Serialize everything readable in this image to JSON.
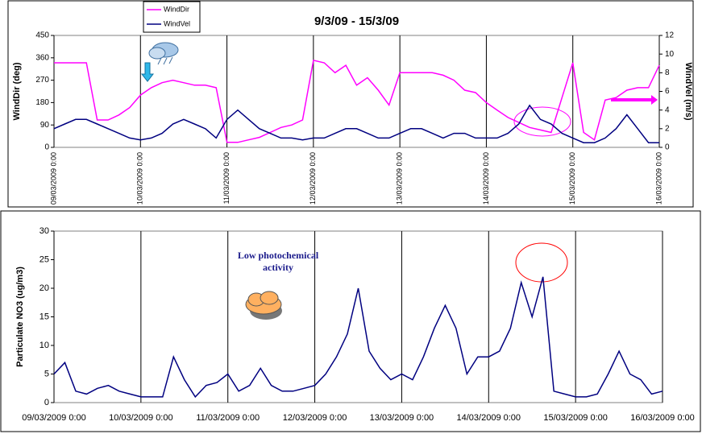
{
  "chart_data": [
    {
      "type": "line",
      "title": "9/3/09 - 15/3/09",
      "ylabel": "WindDir (deg)",
      "y2label": "WindVel (m/s)",
      "x": [
        "09/03/2009 0:00",
        "09/03/2009 3:00",
        "09/03/2009 6:00",
        "09/03/2009 9:00",
        "09/03/2009 12:00",
        "09/03/2009 15:00",
        "09/03/2009 18:00",
        "09/03/2009 21:00",
        "10/03/2009 0:00",
        "10/03/2009 3:00",
        "10/03/2009 6:00",
        "10/03/2009 9:00",
        "10/03/2009 12:00",
        "10/03/2009 15:00",
        "10/03/2009 18:00",
        "10/03/2009 21:00",
        "11/03/2009 0:00",
        "11/03/2009 3:00",
        "11/03/2009 6:00",
        "11/03/2009 9:00",
        "11/03/2009 12:00",
        "11/03/2009 15:00",
        "11/03/2009 18:00",
        "11/03/2009 21:00",
        "12/03/2009 0:00",
        "12/03/2009 3:00",
        "12/03/2009 6:00",
        "12/03/2009 9:00",
        "12/03/2009 12:00",
        "12/03/2009 15:00",
        "12/03/2009 18:00",
        "12/03/2009 21:00",
        "13/03/2009 0:00",
        "13/03/2009 3:00",
        "13/03/2009 6:00",
        "13/03/2009 9:00",
        "13/03/2009 12:00",
        "13/03/2009 15:00",
        "13/03/2009 18:00",
        "13/03/2009 21:00",
        "14/03/2009 0:00",
        "14/03/2009 3:00",
        "14/03/2009 6:00",
        "14/03/2009 9:00",
        "14/03/2009 12:00",
        "14/03/2009 15:00",
        "14/03/2009 18:00",
        "14/03/2009 21:00",
        "15/03/2009 0:00",
        "15/03/2009 3:00",
        "15/03/2009 6:00",
        "15/03/2009 9:00",
        "15/03/2009 12:00",
        "15/03/2009 15:00",
        "15/03/2009 18:00",
        "15/03/2009 21:00",
        "16/03/2009 0:00"
      ],
      "series": [
        {
          "name": "WindDir",
          "color": "#ff00ff",
          "values": [
            340,
            340,
            340,
            340,
            110,
            110,
            130,
            160,
            210,
            240,
            260,
            270,
            260,
            250,
            250,
            240,
            20,
            20,
            30,
            40,
            60,
            80,
            90,
            110,
            350,
            340,
            300,
            330,
            250,
            280,
            230,
            170,
            300,
            300,
            300,
            300,
            290,
            270,
            230,
            220,
            180,
            150,
            120,
            100,
            80,
            70,
            60,
            200,
            340,
            60,
            30,
            190,
            200,
            230,
            240,
            240,
            330
          ]
        },
        {
          "name": "WindVel",
          "color": "#000080",
          "axis": "y2",
          "values": [
            2,
            2.5,
            3,
            3,
            2.5,
            2,
            1.5,
            1,
            0.8,
            1,
            1.5,
            2.5,
            3,
            2.5,
            2,
            1,
            3,
            4,
            3,
            2,
            1.5,
            1,
            1,
            0.8,
            1,
            1,
            1.5,
            2,
            2,
            1.5,
            1,
            1,
            1.5,
            2,
            2,
            1.5,
            1,
            1.5,
            1.5,
            1,
            1,
            1,
            1.5,
            2.5,
            4.5,
            3,
            2.5,
            1.5,
            1,
            0.5,
            0.5,
            1,
            2,
            3.5,
            2,
            0.5,
            0.5
          ]
        }
      ],
      "xlim": [
        "09/03/2009 0:00",
        "16/03/2009 0:00"
      ],
      "xticks": [
        "09/03/2009 0:00",
        "10/03/2009 0:00",
        "11/03/2009 0:00",
        "12/03/2009 0:00",
        "13/03/2009 0:00",
        "14/03/2009 0:00",
        "15/03/2009 0:00",
        "16/03/2009 0:00"
      ],
      "ylim": [
        0,
        450
      ],
      "yticks": [
        0,
        90,
        180,
        270,
        360,
        450
      ],
      "y2lim": [
        0,
        12
      ],
      "y2ticks": [
        0,
        2,
        4,
        6,
        8,
        10,
        12
      ],
      "grid": true,
      "legend": "top-left"
    },
    {
      "type": "line",
      "ylabel": "Particulate NO3 (ug/m3)",
      "annotation": "Low photochemical activity",
      "color": "#000080",
      "x": [
        "09/03/2009 0:00",
        "09/03/2009 3:00",
        "09/03/2009 6:00",
        "09/03/2009 9:00",
        "09/03/2009 12:00",
        "09/03/2009 15:00",
        "09/03/2009 18:00",
        "09/03/2009 21:00",
        "10/03/2009 0:00",
        "10/03/2009 3:00",
        "10/03/2009 6:00",
        "10/03/2009 9:00",
        "10/03/2009 12:00",
        "10/03/2009 15:00",
        "10/03/2009 18:00",
        "10/03/2009 21:00",
        "11/03/2009 0:00",
        "11/03/2009 3:00",
        "11/03/2009 6:00",
        "11/03/2009 9:00",
        "11/03/2009 12:00",
        "11/03/2009 15:00",
        "11/03/2009 18:00",
        "11/03/2009 21:00",
        "12/03/2009 0:00",
        "12/03/2009 3:00",
        "12/03/2009 6:00",
        "12/03/2009 9:00",
        "12/03/2009 12:00",
        "12/03/2009 15:00",
        "12/03/2009 18:00",
        "12/03/2009 21:00",
        "13/03/2009 0:00",
        "13/03/2009 3:00",
        "13/03/2009 6:00",
        "13/03/2009 9:00",
        "13/03/2009 12:00",
        "13/03/2009 15:00",
        "13/03/2009 18:00",
        "13/03/2009 21:00",
        "14/03/2009 0:00",
        "14/03/2009 3:00",
        "14/03/2009 6:00",
        "14/03/2009 9:00",
        "14/03/2009 12:00",
        "14/03/2009 15:00",
        "14/03/2009 18:00",
        "14/03/2009 21:00",
        "15/03/2009 0:00",
        "15/03/2009 3:00",
        "15/03/2009 6:00",
        "15/03/2009 9:00",
        "15/03/2009 12:00",
        "15/03/2009 15:00",
        "15/03/2009 18:00",
        "15/03/2009 21:00",
        "16/03/2009 0:00"
      ],
      "values": [
        5,
        7,
        2,
        1.5,
        2.5,
        3,
        2,
        1.5,
        1,
        1,
        1,
        8,
        4,
        1,
        3,
        3.5,
        5,
        2,
        3,
        6,
        3,
        2,
        2,
        2.5,
        3,
        5,
        8,
        12,
        20,
        9,
        6,
        4,
        5,
        4,
        8,
        13,
        17,
        13,
        5,
        8,
        8,
        9,
        13,
        21,
        15,
        22,
        2,
        1.5,
        1,
        1,
        1.5,
        5,
        9,
        5,
        4,
        1.5,
        2
      ],
      "xlim": [
        "09/03/2009 0:00",
        "16/03/2009 0:00"
      ],
      "xticks": [
        "09/03/2009 0:00",
        "10/03/2009 0:00",
        "11/03/2009 0:00",
        "12/03/2009 0:00",
        "13/03/2009 0:00",
        "14/03/2009 0:00",
        "15/03/2009 0:00",
        "16/03/2009 0:00"
      ],
      "ylim": [
        0,
        30
      ],
      "yticks": [
        0,
        5,
        10,
        15,
        20,
        25,
        30
      ],
      "grid": true
    }
  ]
}
